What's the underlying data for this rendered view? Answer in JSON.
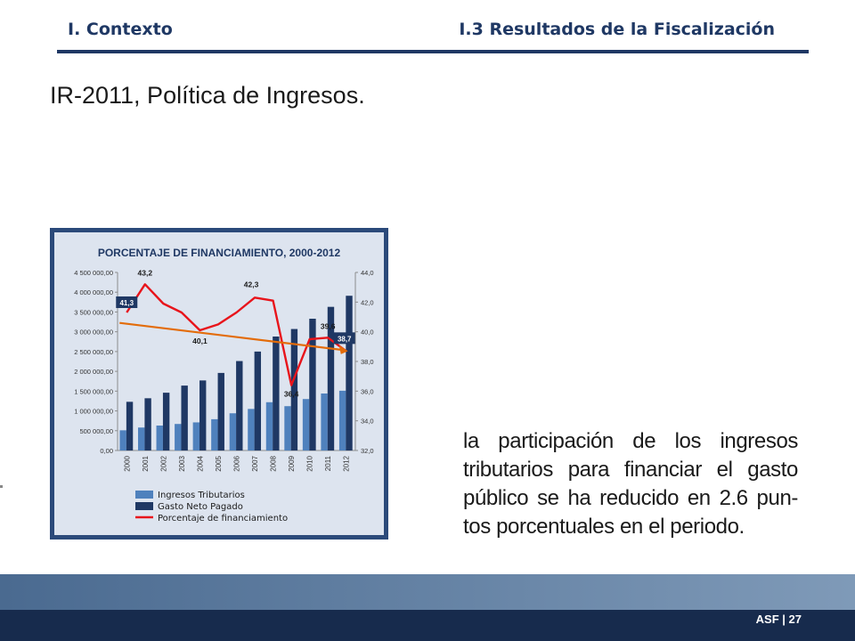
{
  "header": {
    "left": "I. Contexto",
    "right": "I.3 Resultados de la Fiscalización"
  },
  "page_title": "IR-2011, Política de Ingresos.",
  "body_text": "la participación de los ingresos tributarios para financiar el gasto público se ha reducido en 2.6 pun-tos porcentuales en el periodo.",
  "footer": {
    "label": "ASF",
    "separator": "|",
    "page": "27"
  },
  "colors": {
    "header_navy": "#1f3864",
    "bar_ingresos": "#4f81bd",
    "bar_gasto": "#1f3864",
    "line_porcentaje": "#e8141b",
    "trend_arrow": "#e36c0a",
    "chart_bg": "#dde4ef"
  },
  "chart_data": {
    "type": "bar",
    "title": "PORCENTAJE DE FINANCIAMIENTO, 2000-2012",
    "categories": [
      "2000",
      "2001",
      "2002",
      "2003",
      "2004",
      "2005",
      "2006",
      "2007",
      "2008",
      "2009",
      "2010",
      "2011",
      "2012"
    ],
    "series": [
      {
        "name": "Ingresos Tributarios",
        "type": "bar",
        "axis": "left",
        "values": [
          510000,
          580000,
          630000,
          670000,
          710000,
          790000,
          940000,
          1050000,
          1220000,
          1120000,
          1300000,
          1440000,
          1510000
        ]
      },
      {
        "name": "Gasto Neto Pagado",
        "type": "bar",
        "axis": "left",
        "values": [
          1230000,
          1320000,
          1460000,
          1640000,
          1770000,
          1960000,
          2260000,
          2500000,
          2880000,
          3070000,
          3330000,
          3630000,
          3910000
        ]
      },
      {
        "name": "Porcentaje de financiamiento",
        "type": "line",
        "axis": "right",
        "values": [
          41.3,
          43.2,
          41.9,
          41.3,
          40.1,
          40.5,
          41.3,
          42.3,
          42.1,
          36.4,
          39.5,
          39.6,
          38.7
        ]
      }
    ],
    "left_axis": {
      "ylim": [
        0,
        4500000
      ],
      "tick_labels": [
        "0,00",
        "500 000,00",
        "1 000 000,00",
        "1 500 000,00",
        "2 000 000,00",
        "2 500 000,00",
        "3 000 000,00",
        "3 500 000,00",
        "4 000 000,00",
        "4 500 000,00"
      ]
    },
    "right_axis": {
      "ylim": [
        32,
        44
      ],
      "tick_labels": [
        "32,0",
        "34,0",
        "36,0",
        "38,0",
        "40,0",
        "42,0",
        "44,0"
      ]
    },
    "data_labels": [
      {
        "category": "2000",
        "text": "41,3",
        "boxed": true
      },
      {
        "category": "2001",
        "text": "43,2",
        "boxed": false
      },
      {
        "category": "2004",
        "text": "40,1",
        "boxed": false
      },
      {
        "category": "2007",
        "text": "42,3",
        "boxed": false
      },
      {
        "category": "2009",
        "text": "36,4",
        "boxed": false
      },
      {
        "category": "2011",
        "text": "39,6",
        "boxed": false
      },
      {
        "category": "2012",
        "text": "38,7",
        "boxed": true
      }
    ],
    "trend_arrow": {
      "from": {
        "category": "2000",
        "value": 40.6
      },
      "to": {
        "category": "2012",
        "value": 38.7
      }
    },
    "legend_position": "bottom",
    "grid": false
  }
}
